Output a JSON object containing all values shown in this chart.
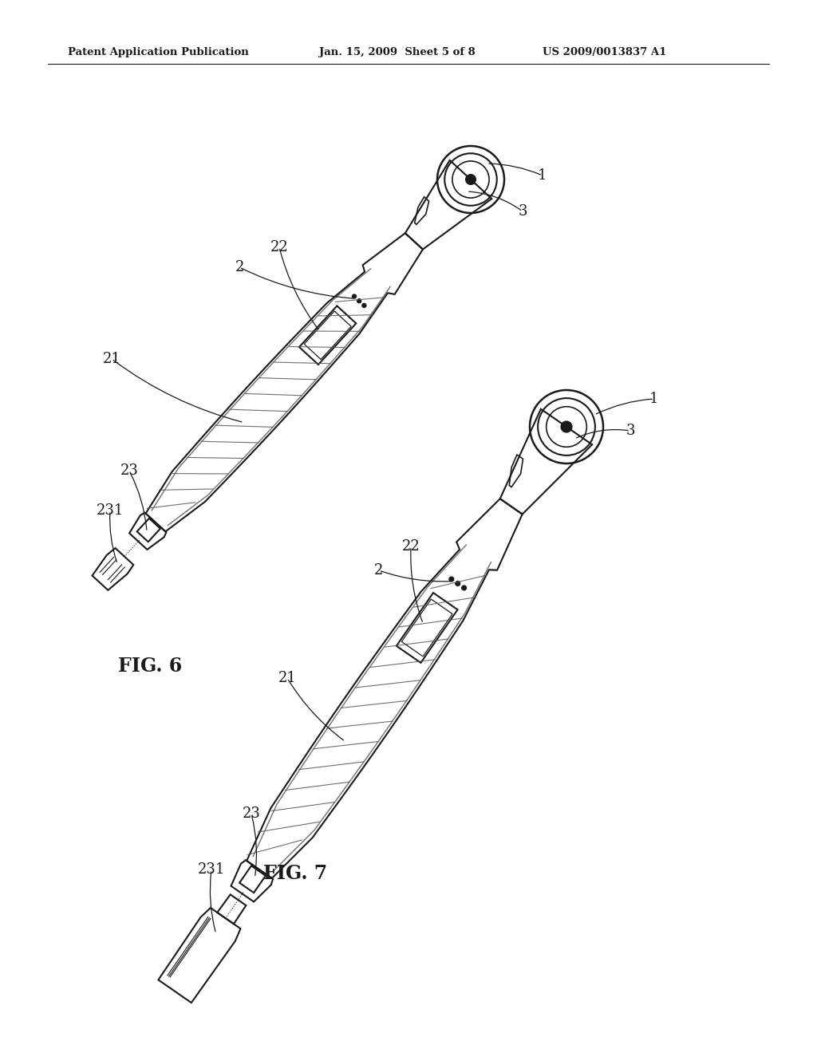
{
  "background_color": "#ffffff",
  "header_left": "Patent Application Publication",
  "header_center": "Jan. 15, 2009  Sheet 5 of 8",
  "header_right": "US 2009/0013837 A1",
  "fig6_label": "FIG. 6",
  "fig7_label": "FIG. 7"
}
